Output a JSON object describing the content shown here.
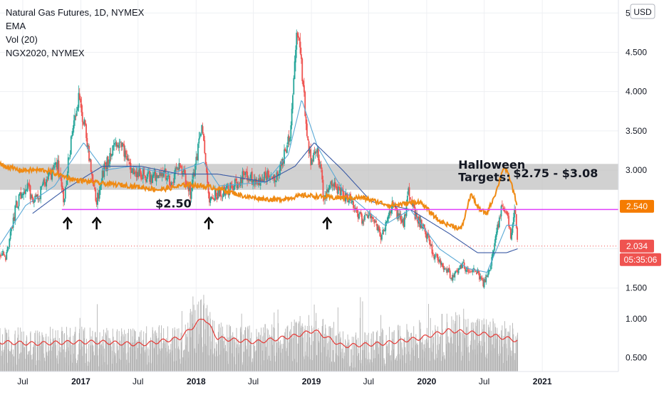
{
  "legend": {
    "symbol": "Natural Gas Futures, 1D, NYMEX",
    "ema": "EMA",
    "vol": "Vol (20)",
    "compare": "NGX2020, NYMEX"
  },
  "currency_badge": "USD",
  "annotations": {
    "support_label": "$2.50",
    "target_title_line1": "Halloween",
    "target_title_line2": "Targets:",
    "target_range": "$2.75 - $3.08"
  },
  "price_tags": {
    "compare_last": "2.540",
    "last_price": "2.034",
    "countdown": "05:35:06"
  },
  "colors": {
    "background": "#ffffff",
    "grid": "#eef0f3",
    "candle_up": "#26a69a",
    "candle_down": "#ef5350",
    "ema": "#5aa9d6",
    "ma": "#3b5ba5",
    "compare": "#ef8a13",
    "support_line": "#e040fb",
    "zone": "#bdbdbd",
    "volume_bar": "#b6b6b6",
    "volume_ma": "#e53935",
    "last_price": "#ef5350",
    "compare_tag": "#f57c00"
  },
  "chart_data": {
    "type": "candlestick",
    "title": "Natural Gas Futures, 1D, NYMEX",
    "x_axis_ticks": [
      "Jul",
      "2017",
      "Jul",
      "2018",
      "Jul",
      "2019",
      "Jul",
      "2020",
      "Jul",
      "2021"
    ],
    "x_axis_tick_dates": [
      "2016-07-01",
      "2017-01-01",
      "2017-07-01",
      "2018-01-01",
      "2018-07-01",
      "2019-01-01",
      "2019-07-01",
      "2020-01-01",
      "2020-07-01",
      "2021-01-01"
    ],
    "y_axis_ticks": [
      1.5,
      2.0,
      2.5,
      3.0,
      3.5,
      4.0,
      4.5,
      5.0
    ],
    "y_axis_tick_labels": [
      "1.500",
      "2.000",
      "2.500",
      "3.000",
      "3.500",
      "4.000",
      "4.500",
      "5.000"
    ],
    "ylim": [
      1.38,
      5.12
    ],
    "volume_axis_ticks": [
      0.5,
      1.0
    ],
    "volume_axis_tick_labels": [
      "0.500",
      "1.000"
    ],
    "volume_ylim": [
      0.32,
      1.58
    ],
    "x_range": [
      "2016-04-20",
      "2021-08-30"
    ],
    "last_candle_date": "2020-10-15",
    "price_anchors": [
      [
        "2016-04-20",
        1.95
      ],
      [
        "2016-05-10",
        1.9
      ],
      [
        "2016-06-10",
        2.55
      ],
      [
        "2016-07-10",
        2.8
      ],
      [
        "2016-08-10",
        2.6
      ],
      [
        "2016-09-10",
        2.85
      ],
      [
        "2016-10-20",
        3.05
      ],
      [
        "2016-11-10",
        2.6
      ],
      [
        "2016-11-25",
        3.2
      ],
      [
        "2016-12-28",
        3.95
      ],
      [
        "2017-01-20",
        3.35
      ],
      [
        "2017-02-20",
        2.6
      ],
      [
        "2017-03-15",
        3.0
      ],
      [
        "2017-04-10",
        3.25
      ],
      [
        "2017-05-10",
        3.3
      ],
      [
        "2017-06-10",
        3.0
      ],
      [
        "2017-07-10",
        2.95
      ],
      [
        "2017-08-10",
        2.9
      ],
      [
        "2017-09-10",
        3.0
      ],
      [
        "2017-10-15",
        2.85
      ],
      [
        "2017-11-10",
        3.1
      ],
      [
        "2017-12-15",
        2.7
      ],
      [
        "2018-01-20",
        3.6
      ],
      [
        "2018-02-10",
        2.65
      ],
      [
        "2018-03-10",
        2.7
      ],
      [
        "2018-04-10",
        2.75
      ],
      [
        "2018-05-10",
        2.85
      ],
      [
        "2018-06-10",
        2.95
      ],
      [
        "2018-07-10",
        2.85
      ],
      [
        "2018-08-10",
        2.95
      ],
      [
        "2018-09-10",
        2.85
      ],
      [
        "2018-10-10",
        3.25
      ],
      [
        "2018-10-25",
        3.4
      ],
      [
        "2018-11-14",
        4.8
      ],
      [
        "2018-11-28",
        4.5
      ],
      [
        "2018-12-15",
        3.6
      ],
      [
        "2018-12-31",
        3.05
      ],
      [
        "2019-01-20",
        3.3
      ],
      [
        "2019-02-10",
        2.65
      ],
      [
        "2019-03-10",
        2.85
      ],
      [
        "2019-04-10",
        2.7
      ],
      [
        "2019-05-10",
        2.6
      ],
      [
        "2019-06-10",
        2.35
      ],
      [
        "2019-07-10",
        2.4
      ],
      [
        "2019-08-10",
        2.15
      ],
      [
        "2019-09-15",
        2.55
      ],
      [
        "2019-10-20",
        2.3
      ],
      [
        "2019-11-05",
        2.75
      ],
      [
        "2019-11-25",
        2.4
      ],
      [
        "2019-12-20",
        2.3
      ],
      [
        "2020-01-20",
        1.95
      ],
      [
        "2020-02-20",
        1.8
      ],
      [
        "2020-03-20",
        1.65
      ],
      [
        "2020-04-20",
        1.8
      ],
      [
        "2020-05-10",
        1.75
      ],
      [
        "2020-06-10",
        1.7
      ],
      [
        "2020-06-28",
        1.55
      ],
      [
        "2020-07-20",
        1.75
      ],
      [
        "2020-08-10",
        2.2
      ],
      [
        "2020-08-25",
        2.55
      ],
      [
        "2020-09-10",
        2.45
      ],
      [
        "2020-09-25",
        2.1
      ],
      [
        "2020-10-05",
        2.55
      ],
      [
        "2020-10-15",
        2.03
      ]
    ],
    "ema_anchors": [
      [
        "2016-04-20",
        2.05
      ],
      [
        "2016-07-10",
        2.55
      ],
      [
        "2016-10-10",
        2.8
      ],
      [
        "2017-01-10",
        3.35
      ],
      [
        "2017-03-15",
        3.0
      ],
      [
        "2017-06-10",
        3.05
      ],
      [
        "2017-10-10",
        2.95
      ],
      [
        "2018-01-25",
        3.1
      ],
      [
        "2018-03-15",
        2.8
      ],
      [
        "2018-08-10",
        2.85
      ],
      [
        "2018-10-20",
        3.2
      ],
      [
        "2018-12-01",
        3.9
      ],
      [
        "2019-01-20",
        3.3
      ],
      [
        "2019-04-10",
        2.75
      ],
      [
        "2019-08-20",
        2.3
      ],
      [
        "2019-11-10",
        2.5
      ],
      [
        "2020-02-10",
        2.0
      ],
      [
        "2020-05-10",
        1.75
      ],
      [
        "2020-07-10",
        1.7
      ],
      [
        "2020-09-10",
        2.3
      ],
      [
        "2020-10-15",
        2.3
      ]
    ],
    "ma_anchors": [
      [
        "2016-08-01",
        2.45
      ],
      [
        "2016-11-10",
        2.75
      ],
      [
        "2017-03-10",
        3.05
      ],
      [
        "2017-07-10",
        3.05
      ],
      [
        "2017-11-10",
        2.95
      ],
      [
        "2018-03-10",
        2.95
      ],
      [
        "2018-08-10",
        2.85
      ],
      [
        "2018-11-10",
        3.05
      ],
      [
        "2019-01-10",
        3.35
      ],
      [
        "2019-04-10",
        3.0
      ],
      [
        "2019-07-10",
        2.6
      ],
      [
        "2019-11-10",
        2.5
      ],
      [
        "2020-03-10",
        2.2
      ],
      [
        "2020-06-10",
        1.95
      ],
      [
        "2020-09-10",
        1.95
      ],
      [
        "2020-10-15",
        2.0
      ]
    ],
    "compare_series_name": "NGX2020, NYMEX",
    "compare_anchors": [
      [
        "2016-04-20",
        3.07
      ],
      [
        "2016-06-20",
        3.0
      ],
      [
        "2016-09-10",
        3.0
      ],
      [
        "2016-12-10",
        2.88
      ],
      [
        "2017-03-10",
        2.83
      ],
      [
        "2017-06-10",
        2.8
      ],
      [
        "2017-09-10",
        2.75
      ],
      [
        "2017-12-10",
        2.82
      ],
      [
        "2018-03-10",
        2.77
      ],
      [
        "2018-06-10",
        2.66
      ],
      [
        "2018-09-10",
        2.62
      ],
      [
        "2018-12-10",
        2.68
      ],
      [
        "2019-03-10",
        2.65
      ],
      [
        "2019-06-10",
        2.65
      ],
      [
        "2019-09-10",
        2.55
      ],
      [
        "2019-12-10",
        2.6
      ],
      [
        "2020-02-10",
        2.35
      ],
      [
        "2020-04-20",
        2.25
      ],
      [
        "2020-05-20",
        2.7
      ],
      [
        "2020-06-15",
        2.5
      ],
      [
        "2020-07-10",
        2.45
      ],
      [
        "2020-08-10",
        2.75
      ],
      [
        "2020-09-01",
        3.05
      ],
      [
        "2020-09-20",
        2.9
      ],
      [
        "2020-10-15",
        2.54
      ]
    ],
    "volume_ma_anchors": [
      [
        "2016-04-20",
        0.7
      ],
      [
        "2016-08-10",
        0.68
      ],
      [
        "2016-12-10",
        0.7
      ],
      [
        "2017-03-10",
        0.7
      ],
      [
        "2017-07-10",
        0.67
      ],
      [
        "2017-11-10",
        0.75
      ],
      [
        "2018-01-25",
        1.02
      ],
      [
        "2018-03-10",
        0.75
      ],
      [
        "2018-07-10",
        0.7
      ],
      [
        "2018-11-10",
        0.78
      ],
      [
        "2019-01-10",
        0.85
      ],
      [
        "2019-04-10",
        0.65
      ],
      [
        "2019-08-10",
        0.68
      ],
      [
        "2019-12-10",
        0.75
      ],
      [
        "2020-03-10",
        0.85
      ],
      [
        "2020-07-10",
        0.8
      ],
      [
        "2020-10-15",
        0.72
      ]
    ],
    "support_level": 2.5,
    "target_zone": [
      2.75,
      3.08
    ],
    "last_price": 2.034,
    "compare_last": 2.54,
    "up_arrow_dates": [
      "2016-11-20",
      "2017-02-20",
      "2018-02-10",
      "2019-02-20"
    ]
  }
}
